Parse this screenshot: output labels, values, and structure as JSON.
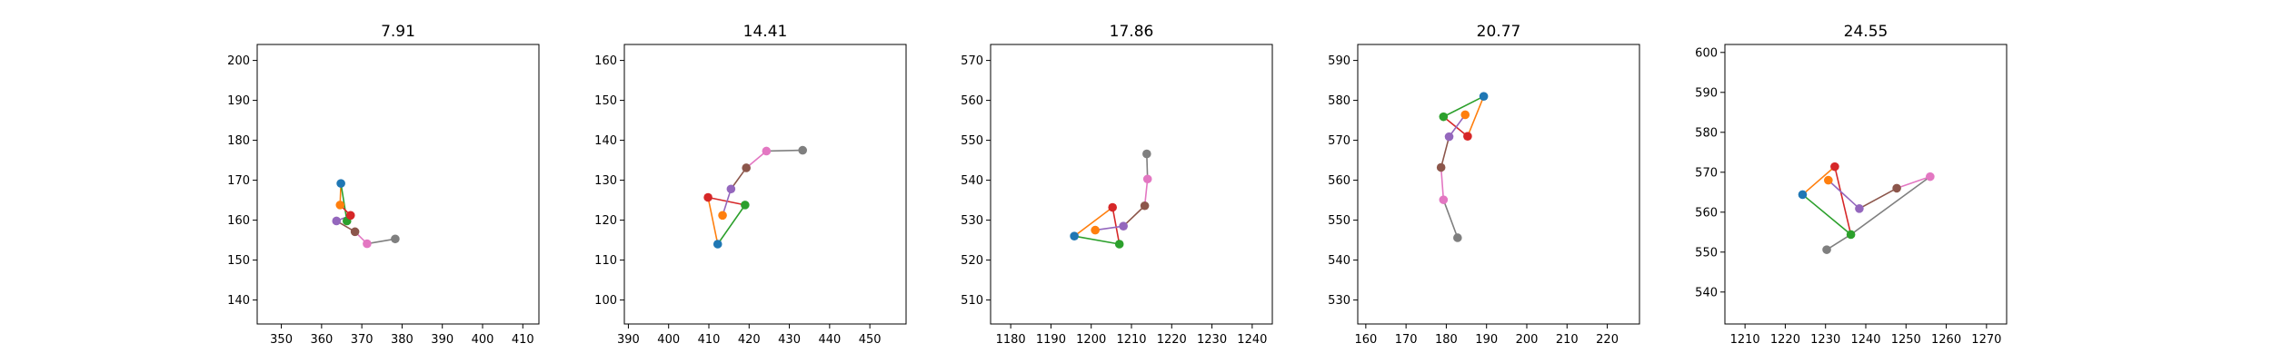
{
  "colors": {
    "blue": "#1f77b4",
    "orange": "#ff7f0e",
    "green": "#2ca02c",
    "red": "#d62728",
    "purple": "#9467bd",
    "brown": "#8c564b",
    "pink": "#e377c2",
    "gray": "#7f7f7f"
  },
  "chart_data": [
    {
      "type": "scatter",
      "title": "7.91",
      "xlim": [
        344,
        414
      ],
      "ylim": [
        134,
        204
      ],
      "xticks": [
        350,
        360,
        370,
        380,
        390,
        400,
        410
      ],
      "yticks": [
        140,
        150,
        160,
        170,
        180,
        190,
        200
      ],
      "points": [
        {
          "color": "blue",
          "x": 364.8,
          "y": 169.2
        },
        {
          "color": "orange",
          "x": 364.6,
          "y": 163.8
        },
        {
          "color": "green",
          "x": 366.3,
          "y": 159.8
        },
        {
          "color": "red",
          "x": 367.2,
          "y": 161.2
        },
        {
          "color": "purple",
          "x": 363.7,
          "y": 159.8
        },
        {
          "color": "brown",
          "x": 368.3,
          "y": 157.1
        },
        {
          "color": "pink",
          "x": 371.3,
          "y": 154.1
        },
        {
          "color": "gray",
          "x": 378.3,
          "y": 155.3
        }
      ],
      "segments": [
        {
          "color": "orange",
          "from": 0,
          "to": 1
        },
        {
          "color": "green",
          "from": 0,
          "to": 2
        },
        {
          "color": "red",
          "from": 1,
          "to": 3
        },
        {
          "color": "purple",
          "from": 3,
          "to": 4
        },
        {
          "color": "brown",
          "from": 4,
          "to": 5
        },
        {
          "color": "pink",
          "from": 5,
          "to": 6
        },
        {
          "color": "gray",
          "from": 6,
          "to": 7
        }
      ]
    },
    {
      "type": "scatter",
      "title": "14.41",
      "xlim": [
        389,
        459
      ],
      "ylim": [
        94,
        164
      ],
      "xticks": [
        390,
        400,
        410,
        420,
        430,
        440,
        450
      ],
      "yticks": [
        100,
        110,
        120,
        130,
        140,
        150,
        160
      ],
      "points": [
        {
          "color": "blue",
          "x": 412.2,
          "y": 114.0
        },
        {
          "color": "orange",
          "x": 413.4,
          "y": 121.2
        },
        {
          "color": "green",
          "x": 419.0,
          "y": 123.8
        },
        {
          "color": "red",
          "x": 409.8,
          "y": 125.7
        },
        {
          "color": "purple",
          "x": 415.5,
          "y": 127.8
        },
        {
          "color": "brown",
          "x": 419.3,
          "y": 133.1
        },
        {
          "color": "pink",
          "x": 424.3,
          "y": 137.3
        },
        {
          "color": "gray",
          "x": 433.3,
          "y": 137.5
        }
      ],
      "segments": [
        {
          "color": "orange",
          "from": 0,
          "to": 3
        },
        {
          "color": "green",
          "from": 0,
          "to": 2
        },
        {
          "color": "red",
          "from": 3,
          "to": 2
        },
        {
          "color": "purple",
          "from": 1,
          "to": 4
        },
        {
          "color": "brown",
          "from": 4,
          "to": 5
        },
        {
          "color": "pink",
          "from": 5,
          "to": 6
        },
        {
          "color": "gray",
          "from": 6,
          "to": 7
        }
      ]
    },
    {
      "type": "scatter",
      "title": "17.86",
      "xlim": [
        1175,
        1245
      ],
      "ylim": [
        504,
        574
      ],
      "xticks": [
        1180,
        1190,
        1200,
        1210,
        1220,
        1230,
        1240
      ],
      "yticks": [
        510,
        520,
        530,
        540,
        550,
        560,
        570
      ],
      "points": [
        {
          "color": "blue",
          "x": 1195.8,
          "y": 526.0
        },
        {
          "color": "orange",
          "x": 1201.0,
          "y": 527.5
        },
        {
          "color": "green",
          "x": 1207.0,
          "y": 524.0
        },
        {
          "color": "red",
          "x": 1205.3,
          "y": 533.2
        },
        {
          "color": "purple",
          "x": 1208.0,
          "y": 528.5
        },
        {
          "color": "brown",
          "x": 1213.3,
          "y": 533.6
        },
        {
          "color": "pink",
          "x": 1214.0,
          "y": 540.3
        },
        {
          "color": "gray",
          "x": 1213.8,
          "y": 546.6
        }
      ],
      "segments": [
        {
          "color": "orange",
          "from": 0,
          "to": 3
        },
        {
          "color": "green",
          "from": 0,
          "to": 2
        },
        {
          "color": "red",
          "from": 3,
          "to": 2
        },
        {
          "color": "purple",
          "from": 1,
          "to": 4
        },
        {
          "color": "brown",
          "from": 4,
          "to": 5
        },
        {
          "color": "pink",
          "from": 5,
          "to": 6
        },
        {
          "color": "gray",
          "from": 6,
          "to": 7
        }
      ]
    },
    {
      "type": "scatter",
      "title": "20.77",
      "xlim": [
        158,
        228
      ],
      "ylim": [
        524,
        594
      ],
      "xticks": [
        160,
        170,
        180,
        190,
        200,
        210,
        220
      ],
      "yticks": [
        530,
        540,
        550,
        560,
        570,
        580,
        590
      ],
      "points": [
        {
          "color": "blue",
          "x": 189.3,
          "y": 581.0
        },
        {
          "color": "orange",
          "x": 184.7,
          "y": 576.4
        },
        {
          "color": "green",
          "x": 179.3,
          "y": 575.9
        },
        {
          "color": "red",
          "x": 185.3,
          "y": 571.0
        },
        {
          "color": "purple",
          "x": 180.7,
          "y": 570.9
        },
        {
          "color": "brown",
          "x": 178.7,
          "y": 563.2
        },
        {
          "color": "pink",
          "x": 179.3,
          "y": 555.1
        },
        {
          "color": "gray",
          "x": 182.8,
          "y": 545.6
        }
      ],
      "segments": [
        {
          "color": "orange",
          "from": 0,
          "to": 3
        },
        {
          "color": "green",
          "from": 0,
          "to": 2
        },
        {
          "color": "red",
          "from": 2,
          "to": 3
        },
        {
          "color": "purple",
          "from": 1,
          "to": 4
        },
        {
          "color": "brown",
          "from": 4,
          "to": 5
        },
        {
          "color": "pink",
          "from": 5,
          "to": 6
        },
        {
          "color": "gray",
          "from": 6,
          "to": 7
        }
      ]
    },
    {
      "type": "scatter",
      "title": "24.55",
      "xlim": [
        1205,
        1275
      ],
      "ylim": [
        532,
        602
      ],
      "xticks": [
        1210,
        1220,
        1230,
        1240,
        1250,
        1260,
        1270
      ],
      "yticks": [
        540,
        550,
        560,
        570,
        580,
        590,
        600
      ],
      "points": [
        {
          "color": "blue",
          "x": 1224.3,
          "y": 564.4
        },
        {
          "color": "orange",
          "x": 1230.7,
          "y": 568.0
        },
        {
          "color": "green",
          "x": 1236.3,
          "y": 554.4
        },
        {
          "color": "red",
          "x": 1232.3,
          "y": 571.4
        },
        {
          "color": "purple",
          "x": 1238.4,
          "y": 560.9
        },
        {
          "color": "brown",
          "x": 1247.7,
          "y": 566.0
        },
        {
          "color": "pink",
          "x": 1256.0,
          "y": 568.9
        },
        {
          "color": "gray",
          "x": 1230.3,
          "y": 550.6
        }
      ],
      "segments": [
        {
          "color": "orange",
          "from": 0,
          "to": 3
        },
        {
          "color": "green",
          "from": 0,
          "to": 2
        },
        {
          "color": "red",
          "from": 3,
          "to": 2
        },
        {
          "color": "purple",
          "from": 1,
          "to": 4
        },
        {
          "color": "brown",
          "from": 4,
          "to": 5
        },
        {
          "color": "pink",
          "from": 5,
          "to": 6
        },
        {
          "color": "gray",
          "from": 2,
          "to": 6
        },
        {
          "color": "gray",
          "from": 2,
          "to": 7
        }
      ]
    }
  ]
}
